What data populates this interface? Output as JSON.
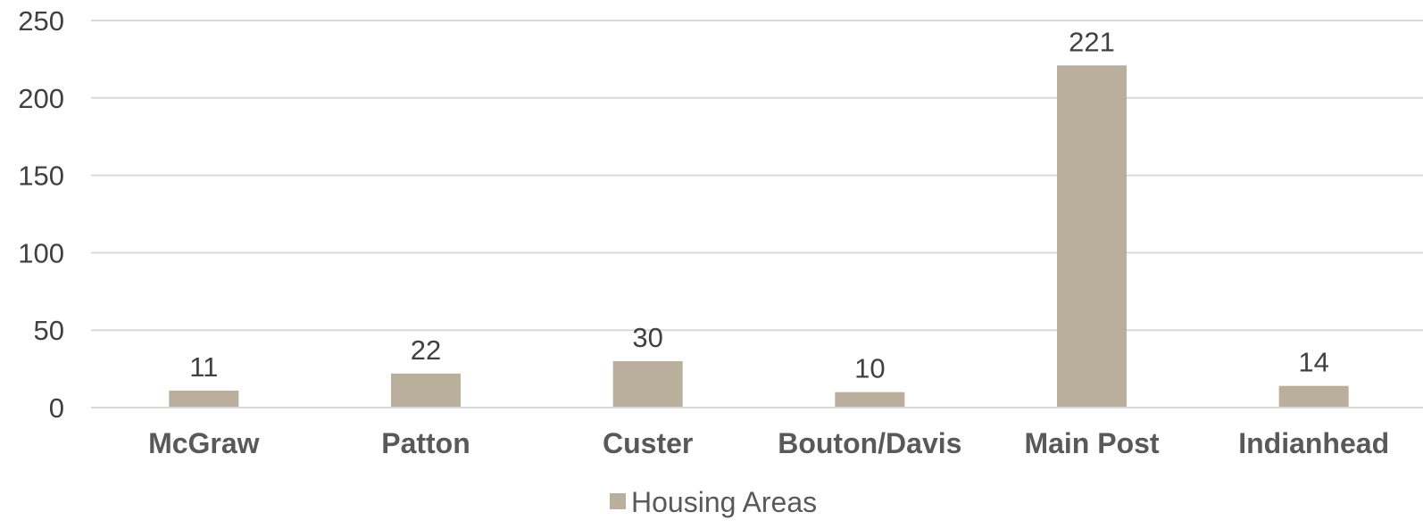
{
  "chart_data": {
    "type": "bar",
    "categories": [
      "McGraw",
      "Patton",
      "Custer",
      "Bouton/Davis",
      "Main Post",
      "Indianhead"
    ],
    "series": [
      {
        "name": "Housing Areas",
        "values": [
          11,
          22,
          30,
          10,
          221,
          14
        ],
        "color": "#b9af9c"
      }
    ],
    "data_labels": [
      "11",
      "22",
      "30",
      "10",
      "221",
      "14"
    ],
    "yticks": [
      "0",
      "50",
      "100",
      "150",
      "200",
      "250"
    ],
    "ylim": [
      0,
      250
    ],
    "grid": true,
    "gridline_color": "#d9d9d9",
    "legend_position": "bottom",
    "title": "",
    "xlabel": "",
    "ylabel": ""
  }
}
